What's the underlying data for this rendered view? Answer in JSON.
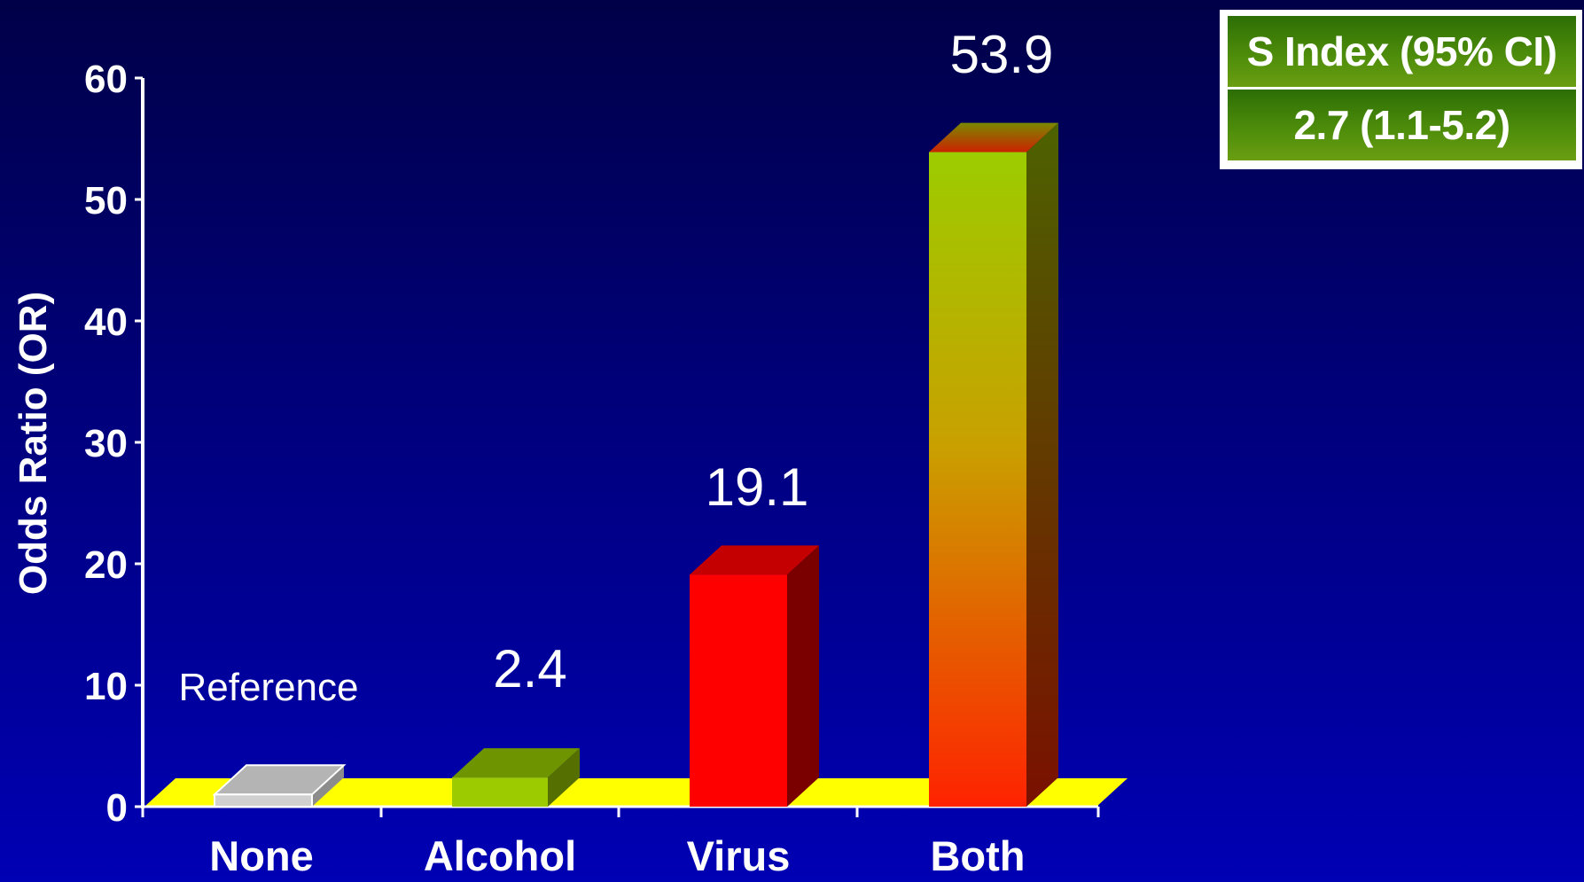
{
  "chart_data": {
    "type": "bar",
    "categories": [
      "None",
      "Alcohol",
      "Virus",
      "Both"
    ],
    "values": [
      1,
      2.4,
      19.1,
      53.9
    ],
    "data_labels": [
      "Reference",
      "2.4",
      "19.1",
      "53.9"
    ],
    "ylabel": "Odds Ratio (OR)",
    "ylim": [
      0,
      60
    ],
    "yticks": [
      "0",
      "10",
      "20",
      "30",
      "40",
      "50",
      "60"
    ],
    "bar_colors": {
      "None": "#d0d0d0",
      "Alcohol": "#9ccc00",
      "Virus": "#ff0000",
      "Both": "gradient #9ccc00 -> #ff2200"
    },
    "floor_color": "#ffff00"
  },
  "sindex_table": {
    "header": "S Index (95% CI)",
    "value": "2.7 (1.1-5.2)"
  }
}
